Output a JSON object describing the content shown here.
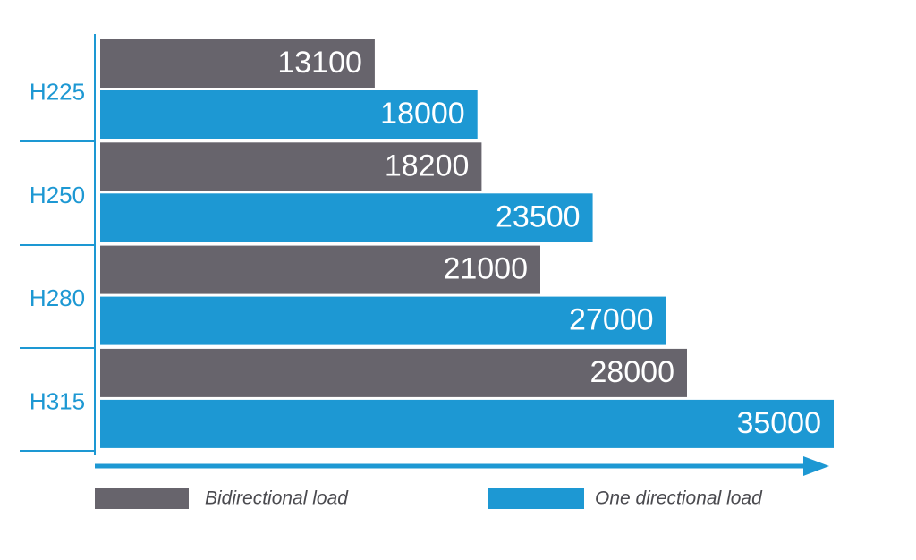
{
  "chart_data": {
    "type": "bar",
    "orientation": "horizontal",
    "title": "",
    "xlabel": "",
    "ylabel": "",
    "categories": [
      "H225",
      "H250",
      "H280",
      "H315"
    ],
    "series": [
      {
        "name": "Bidirectional load",
        "color": "#67646c",
        "values": [
          13100,
          18200,
          21000,
          28000
        ]
      },
      {
        "name": "One directional load",
        "color": "#1d98d3",
        "values": [
          18000,
          23500,
          27000,
          35000
        ]
      }
    ],
    "xlim": [
      0,
      35000
    ],
    "grid": false,
    "legend": "bottom",
    "label_color": "#1d98d3",
    "value_label_color": "#ffffff"
  }
}
